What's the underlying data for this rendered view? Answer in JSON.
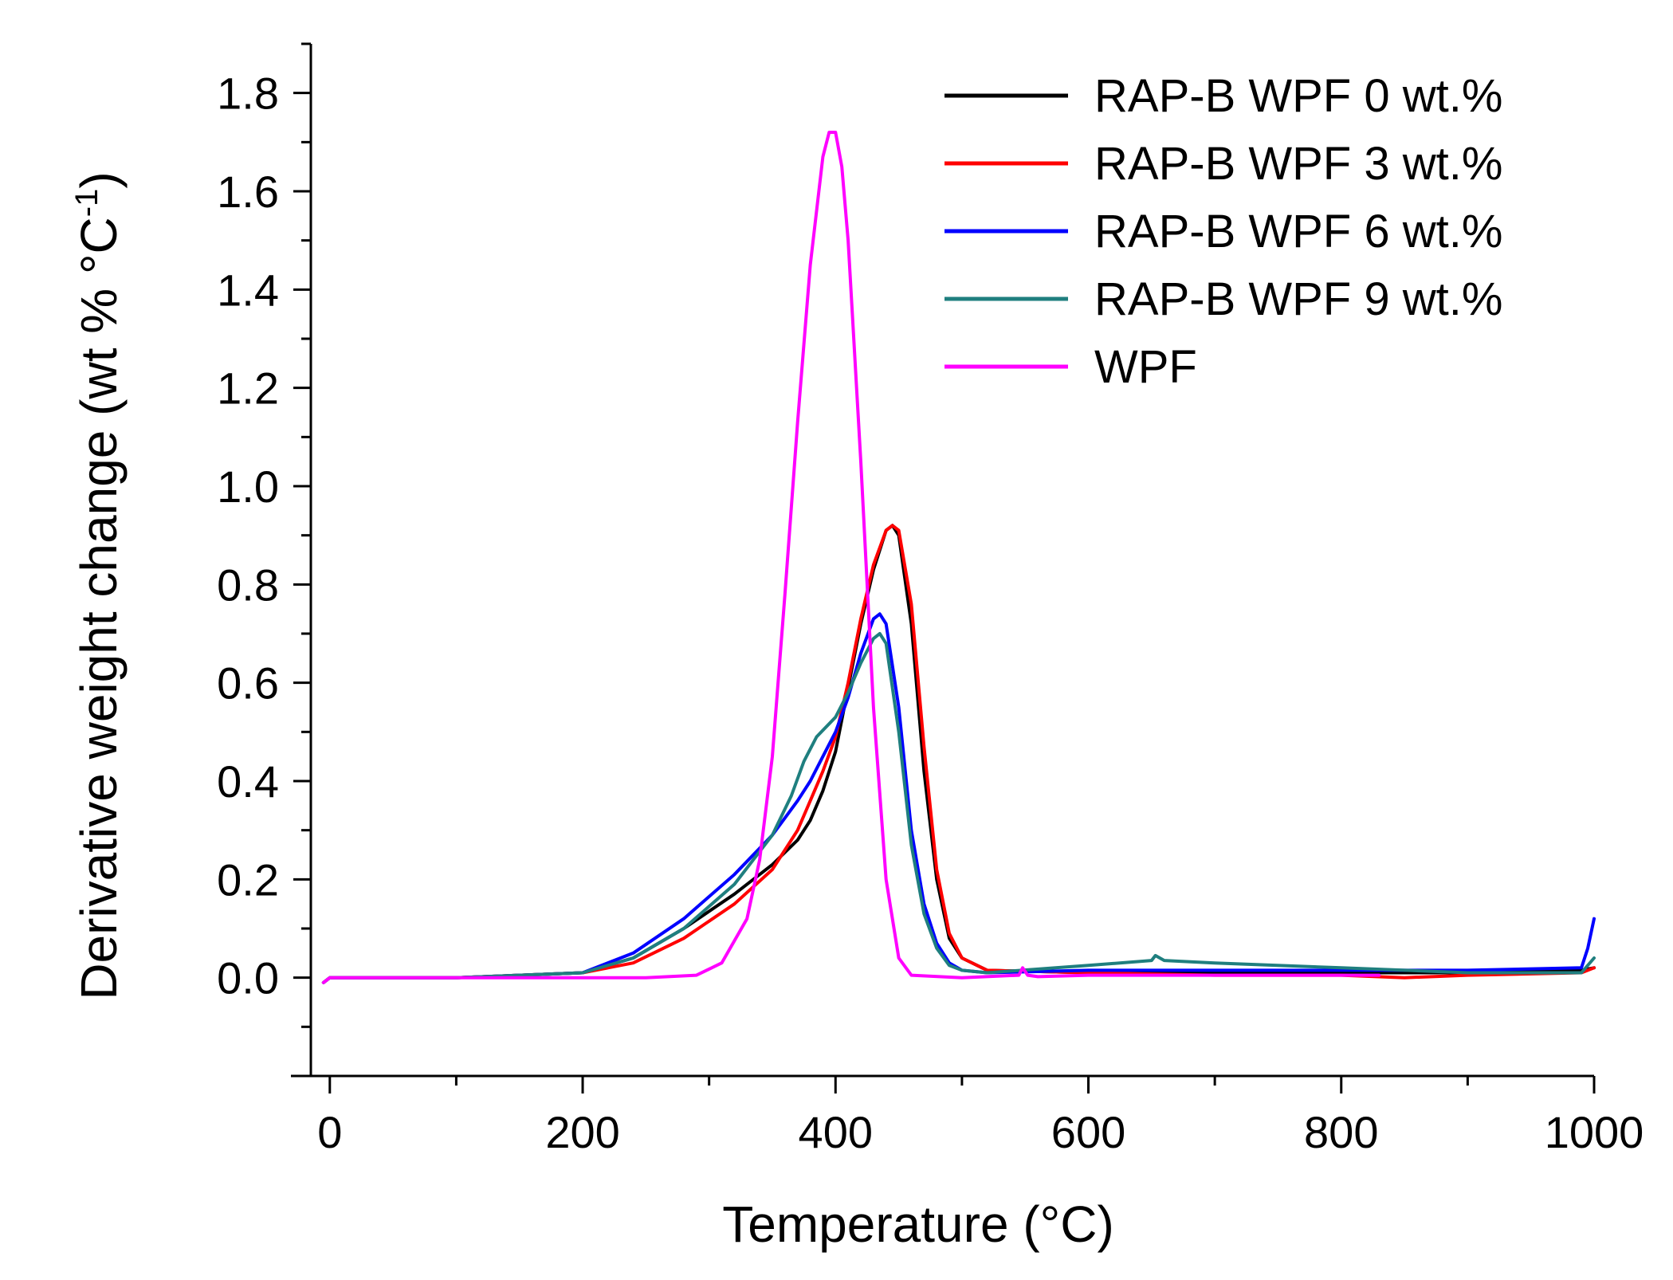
{
  "chart_data": {
    "type": "line",
    "xlabel": "Temperature (°C)",
    "ylabel_main": "Derivative weight change (wt % °C",
    "ylabel_sup": "-1",
    "ylabel_close": ")",
    "xlim": [
      -15,
      1000
    ],
    "ylim": [
      -0.2,
      1.9
    ],
    "xticks": [
      0,
      200,
      400,
      600,
      800,
      1000
    ],
    "xtick_labels": [
      "0",
      "200",
      "400",
      "600",
      "800",
      "1000"
    ],
    "yticks": [
      0.0,
      0.2,
      0.4,
      0.6,
      0.8,
      1.0,
      1.2,
      1.4,
      1.6,
      1.8
    ],
    "ytick_labels": [
      "0.0",
      "0.2",
      "0.4",
      "0.6",
      "0.8",
      "1.0",
      "1.2",
      "1.4",
      "1.6",
      "1.8"
    ],
    "grid": false,
    "legend_position": "top-right",
    "series": [
      {
        "name": "RAP-B WPF 0 wt.%",
        "color": "#000000",
        "x": [
          -5,
          0,
          100,
          150,
          200,
          240,
          280,
          320,
          350,
          370,
          380,
          390,
          400,
          410,
          420,
          430,
          440,
          445,
          450,
          460,
          470,
          480,
          490,
          500,
          520,
          600,
          700,
          800,
          900,
          990,
          1000
        ],
        "y": [
          -0.01,
          0.0,
          0.0,
          0.005,
          0.01,
          0.04,
          0.1,
          0.17,
          0.23,
          0.28,
          0.32,
          0.38,
          0.46,
          0.59,
          0.72,
          0.83,
          0.91,
          0.92,
          0.9,
          0.72,
          0.42,
          0.2,
          0.08,
          0.04,
          0.015,
          0.01,
          0.01,
          0.01,
          0.01,
          0.015,
          0.02
        ]
      },
      {
        "name": "RAP-B WPF 3 wt.%",
        "color": "#ff0000",
        "x": [
          -5,
          0,
          100,
          150,
          200,
          240,
          280,
          320,
          350,
          370,
          380,
          390,
          400,
          410,
          420,
          430,
          440,
          445,
          450,
          460,
          470,
          480,
          490,
          500,
          520,
          600,
          700,
          800,
          850,
          900,
          990,
          1000
        ],
        "y": [
          -0.01,
          0.0,
          0.0,
          0.005,
          0.01,
          0.03,
          0.08,
          0.15,
          0.22,
          0.3,
          0.36,
          0.42,
          0.49,
          0.6,
          0.73,
          0.84,
          0.91,
          0.92,
          0.91,
          0.76,
          0.47,
          0.22,
          0.09,
          0.04,
          0.015,
          0.01,
          0.005,
          0.005,
          0.0,
          0.005,
          0.01,
          0.02
        ]
      },
      {
        "name": "RAP-B WPF 6 wt.%",
        "color": "#0000ff",
        "x": [
          -5,
          0,
          100,
          150,
          200,
          240,
          280,
          320,
          350,
          370,
          380,
          390,
          400,
          410,
          420,
          430,
          435,
          440,
          450,
          460,
          470,
          480,
          490,
          500,
          520,
          600,
          700,
          800,
          900,
          990,
          995,
          1000
        ],
        "y": [
          -0.01,
          0.0,
          0.0,
          0.005,
          0.01,
          0.05,
          0.12,
          0.21,
          0.29,
          0.36,
          0.4,
          0.45,
          0.5,
          0.57,
          0.66,
          0.73,
          0.74,
          0.72,
          0.55,
          0.3,
          0.15,
          0.07,
          0.03,
          0.015,
          0.01,
          0.015,
          0.015,
          0.015,
          0.015,
          0.02,
          0.06,
          0.12
        ]
      },
      {
        "name": "RAP-B WPF 9 wt.%",
        "color": "#1f7f7f",
        "x": [
          -5,
          0,
          100,
          150,
          200,
          240,
          280,
          320,
          350,
          365,
          375,
          385,
          400,
          410,
          420,
          430,
          435,
          440,
          450,
          460,
          470,
          480,
          490,
          500,
          520,
          600,
          650,
          653,
          660,
          700,
          800,
          900,
          990,
          1000
        ],
        "y": [
          -0.01,
          0.0,
          0.0,
          0.005,
          0.01,
          0.04,
          0.1,
          0.19,
          0.29,
          0.37,
          0.44,
          0.49,
          0.53,
          0.58,
          0.64,
          0.69,
          0.7,
          0.68,
          0.5,
          0.27,
          0.13,
          0.06,
          0.025,
          0.015,
          0.01,
          0.025,
          0.035,
          0.045,
          0.035,
          0.03,
          0.02,
          0.01,
          0.01,
          0.04
        ]
      },
      {
        "name": "WPF",
        "color": "#ff00ff",
        "x": [
          -5,
          0,
          100,
          200,
          250,
          290,
          310,
          330,
          340,
          350,
          360,
          370,
          380,
          390,
          395,
          400,
          405,
          410,
          420,
          430,
          440,
          450,
          460,
          500,
          545,
          548,
          552,
          560,
          600,
          700,
          800,
          830
        ],
        "y": [
          -0.01,
          0.0,
          0.0,
          0.0,
          0.0,
          0.005,
          0.03,
          0.12,
          0.24,
          0.45,
          0.78,
          1.13,
          1.45,
          1.67,
          1.72,
          1.72,
          1.65,
          1.5,
          1.05,
          0.55,
          0.2,
          0.04,
          0.005,
          0.0,
          0.005,
          0.02,
          0.005,
          0.002,
          0.005,
          0.005,
          0.005,
          0.005
        ]
      }
    ]
  }
}
